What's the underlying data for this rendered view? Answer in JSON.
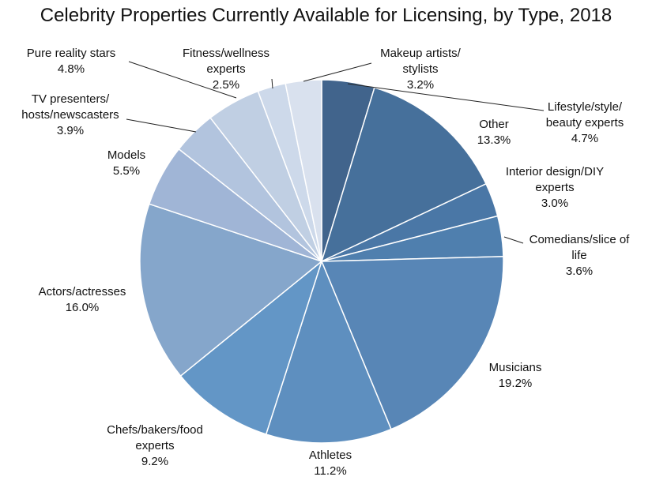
{
  "chart_data": {
    "type": "pie",
    "title": "Celebrity Properties Currently Available for Licensing, by Type, 2018",
    "start": "12 o'clock, clockwise",
    "slices": [
      {
        "label": "Lifestyle/style/ beauty experts",
        "value": 4.7,
        "value_label": "4.7%",
        "color": "#41648c"
      },
      {
        "label": "Other",
        "value": 13.3,
        "value_label": "13.3%",
        "color": "#46709b"
      },
      {
        "label": "Interior design/DIY experts",
        "value": 3.0,
        "value_label": "3.0%",
        "color": "#4a77a6"
      },
      {
        "label": "Comedians/slice of life",
        "value": 3.6,
        "value_label": "3.6%",
        "color": "#4f7fae"
      },
      {
        "label": "Musicians",
        "value": 19.2,
        "value_label": "19.2%",
        "color": "#5886b6"
      },
      {
        "label": "Athletes",
        "value": 11.2,
        "value_label": "11.2%",
        "color": "#5e8fbf"
      },
      {
        "label": "Chefs/bakers/food experts",
        "value": 9.2,
        "value_label": "9.2%",
        "color": "#6396c6"
      },
      {
        "label": "Actors/actresses",
        "value": 16.0,
        "value_label": "16.0%",
        "color": "#85a6cb"
      },
      {
        "label": "Models",
        "value": 5.5,
        "value_label": "5.5%",
        "color": "#a0b5d6"
      },
      {
        "label": "TV presenters/ hosts/newscasters",
        "value": 3.9,
        "value_label": "3.9%",
        "color": "#b2c4de"
      },
      {
        "label": "Pure reality stars",
        "value": 4.8,
        "value_label": "4.8%",
        "color": "#c0cfe3"
      },
      {
        "label": "Fitness/wellness experts",
        "value": 2.5,
        "value_label": "2.5%",
        "color": "#cdd9ea"
      },
      {
        "label": "Makeup artists/ stylists",
        "value": 3.2,
        "value_label": "3.2%",
        "color": "#d9e1ee"
      }
    ]
  }
}
